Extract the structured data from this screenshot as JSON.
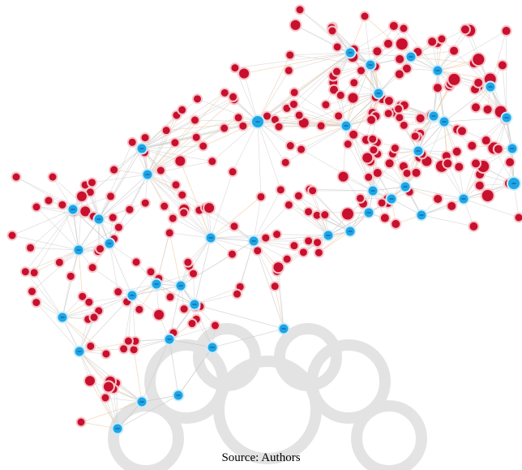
{
  "caption": "Source: Authors"
}
